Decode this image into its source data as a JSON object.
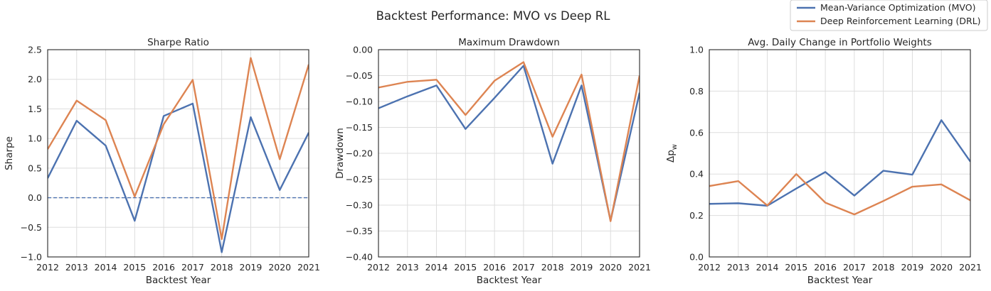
{
  "figure": {
    "title": "Backtest Performance: MVO vs Deep RL"
  },
  "legend": {
    "placement": "top-right",
    "entries": [
      {
        "label": "Mean-Variance Optimization (MVO)",
        "color": "#4c72b0"
      },
      {
        "label": "Deep Reinforcement Learning (DRL)",
        "color": "#dd8452"
      }
    ]
  },
  "chart_data": [
    {
      "type": "line",
      "title": "Sharpe Ratio",
      "xlabel": "Backtest Year",
      "ylabel": "Sharpe",
      "x": [
        2012,
        2013,
        2014,
        2015,
        2016,
        2017,
        2018,
        2019,
        2020,
        2021
      ],
      "xlim": [
        2012,
        2021
      ],
      "ylim": [
        -1.0,
        2.5
      ],
      "yticks": [
        "−1.0",
        "−0.5",
        "0.0",
        "0.5",
        "1.0",
        "1.5",
        "2.0",
        "2.5"
      ],
      "ytick_values": [
        -1.0,
        -0.5,
        0.0,
        0.5,
        1.0,
        1.5,
        2.0,
        2.5
      ],
      "reference_line": {
        "y": 0,
        "style": "dashed",
        "color": "#4c72b0"
      },
      "grid": true,
      "series": [
        {
          "name": "Mean-Variance Optimization (MVO)",
          "color": "#4c72b0",
          "values": [
            0.33,
            1.3,
            0.88,
            -0.39,
            1.38,
            1.59,
            -0.92,
            1.36,
            0.13,
            1.1
          ]
        },
        {
          "name": "Deep Reinforcement Learning (DRL)",
          "color": "#dd8452",
          "values": [
            0.82,
            1.64,
            1.31,
            0.02,
            1.24,
            1.99,
            -0.7,
            2.36,
            0.65,
            2.25
          ]
        }
      ]
    },
    {
      "type": "line",
      "title": "Maximum Drawdown",
      "xlabel": "Backtest Year",
      "ylabel": "Drawdown",
      "x": [
        2012,
        2013,
        2014,
        2015,
        2016,
        2017,
        2018,
        2019,
        2020,
        2021
      ],
      "xlim": [
        2012,
        2021
      ],
      "ylim": [
        -0.4,
        0.0
      ],
      "yticks": [
        "−0.40",
        "−0.35",
        "−0.30",
        "−0.25",
        "−0.20",
        "−0.15",
        "−0.10",
        "−0.05",
        "0.00"
      ],
      "ytick_values": [
        -0.4,
        -0.35,
        -0.3,
        -0.25,
        -0.2,
        -0.15,
        -0.1,
        -0.05,
        0.0
      ],
      "grid": true,
      "series": [
        {
          "name": "Mean-Variance Optimization (MVO)",
          "color": "#4c72b0",
          "values": [
            -0.113,
            -0.09,
            -0.069,
            -0.153,
            -0.093,
            -0.031,
            -0.22,
            -0.069,
            -0.33,
            -0.083
          ]
        },
        {
          "name": "Deep Reinforcement Learning (DRL)",
          "color": "#dd8452",
          "values": [
            -0.073,
            -0.062,
            -0.058,
            -0.126,
            -0.06,
            -0.024,
            -0.168,
            -0.048,
            -0.331,
            -0.05
          ]
        }
      ]
    },
    {
      "type": "line",
      "title": "Avg. Daily Change in Portfolio Weights",
      "xlabel": "Backtest Year",
      "ylabel": "Δp",
      "ylabel_sub": "w",
      "x": [
        2012,
        2013,
        2014,
        2015,
        2016,
        2017,
        2018,
        2019,
        2020,
        2021
      ],
      "xlim": [
        2012,
        2021
      ],
      "ylim": [
        0.0,
        1.0
      ],
      "yticks": [
        "0.0",
        "0.2",
        "0.4",
        "0.6",
        "0.8",
        "1.0"
      ],
      "ytick_values": [
        0.0,
        0.2,
        0.4,
        0.6,
        0.8,
        1.0
      ],
      "grid": true,
      "series": [
        {
          "name": "Mean-Variance Optimization (MVO)",
          "color": "#4c72b0",
          "values": [
            0.256,
            0.259,
            0.247,
            0.33,
            0.41,
            0.296,
            0.416,
            0.397,
            0.66,
            0.46
          ]
        },
        {
          "name": "Deep Reinforcement Learning (DRL)",
          "color": "#dd8452",
          "values": [
            0.342,
            0.366,
            0.248,
            0.4,
            0.262,
            0.205,
            0.27,
            0.339,
            0.35,
            0.273
          ]
        }
      ]
    }
  ]
}
